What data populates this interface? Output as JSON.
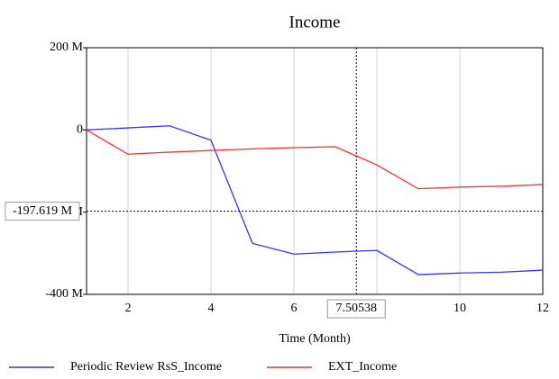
{
  "chart_data": {
    "type": "line",
    "title": "Income",
    "xlabel": "Time (Month)",
    "x": [
      1,
      2,
      3,
      4,
      5,
      6,
      7,
      8,
      9,
      10,
      11,
      12
    ],
    "series": [
      {
        "name": "Periodic Review RsS_Income",
        "color": "#3333ff",
        "values": [
          0,
          5,
          10,
          -25,
          -276,
          -302,
          -297,
          -293,
          -352,
          -348,
          -346,
          -341
        ]
      },
      {
        "name": "EXT_Income",
        "color": "#ff2a2a",
        "values": [
          0,
          -59,
          -54,
          -50,
          -46,
          -43,
          -41,
          -85,
          -143,
          -139,
          -137,
          -133
        ]
      }
    ],
    "xlim": [
      1,
      12
    ],
    "xticks": [
      2,
      4,
      6,
      8,
      10,
      12
    ],
    "ylim": [
      -400,
      200
    ],
    "yticks": [
      {
        "value": 200,
        "label": "200 M"
      },
      0,
      {
        "value": -200,
        "label": "-200 M"
      },
      {
        "value": -400,
        "label": "-400 M"
      }
    ],
    "grid": "x",
    "crosshair": {
      "x": 7.50538,
      "y": {
        "value": -197.619,
        "label": "-197.619 M"
      }
    }
  }
}
